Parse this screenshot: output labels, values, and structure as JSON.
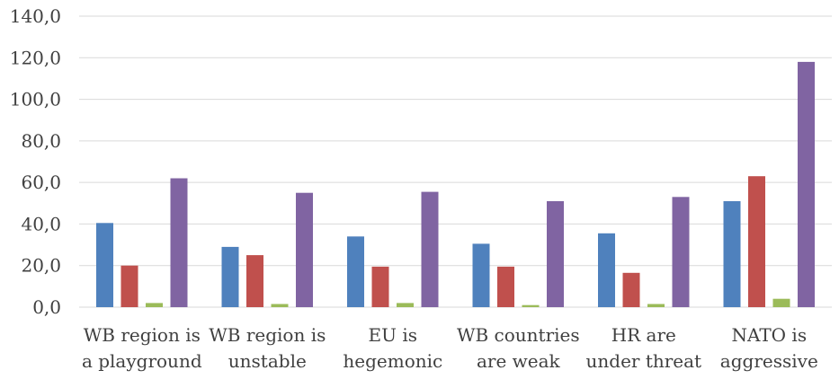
{
  "chart_data": {
    "type": "bar",
    "categories": [
      [
        "WB region is",
        "a playground"
      ],
      [
        "WB region is",
        "unstable"
      ],
      [
        "EU is",
        "hegemonic"
      ],
      [
        "WB countries",
        "are weak"
      ],
      [
        "HR are",
        "under threat"
      ],
      [
        "NATO is",
        "aggressive"
      ]
    ],
    "series": [
      {
        "color": "#4F81BD",
        "values": [
          40.5,
          29.0,
          34.0,
          30.5,
          35.5,
          51.0
        ]
      },
      {
        "color": "#C0504D",
        "values": [
          20.0,
          25.0,
          19.5,
          19.5,
          16.5,
          63.0
        ]
      },
      {
        "color": "#9BBB59",
        "values": [
          2.0,
          1.5,
          2.0,
          1.0,
          1.5,
          4.0
        ]
      },
      {
        "color": "#8064A2",
        "values": [
          62.0,
          55.0,
          55.5,
          51.0,
          53.0,
          118.0
        ]
      }
    ],
    "ylim": [
      0,
      140
    ],
    "yticks": [
      "0,0",
      "20,0",
      "40,0",
      "60,0",
      "80,0",
      "100,0",
      "120,0",
      "140,0"
    ],
    "grid": true,
    "gridColor": "#D9D9D9"
  }
}
